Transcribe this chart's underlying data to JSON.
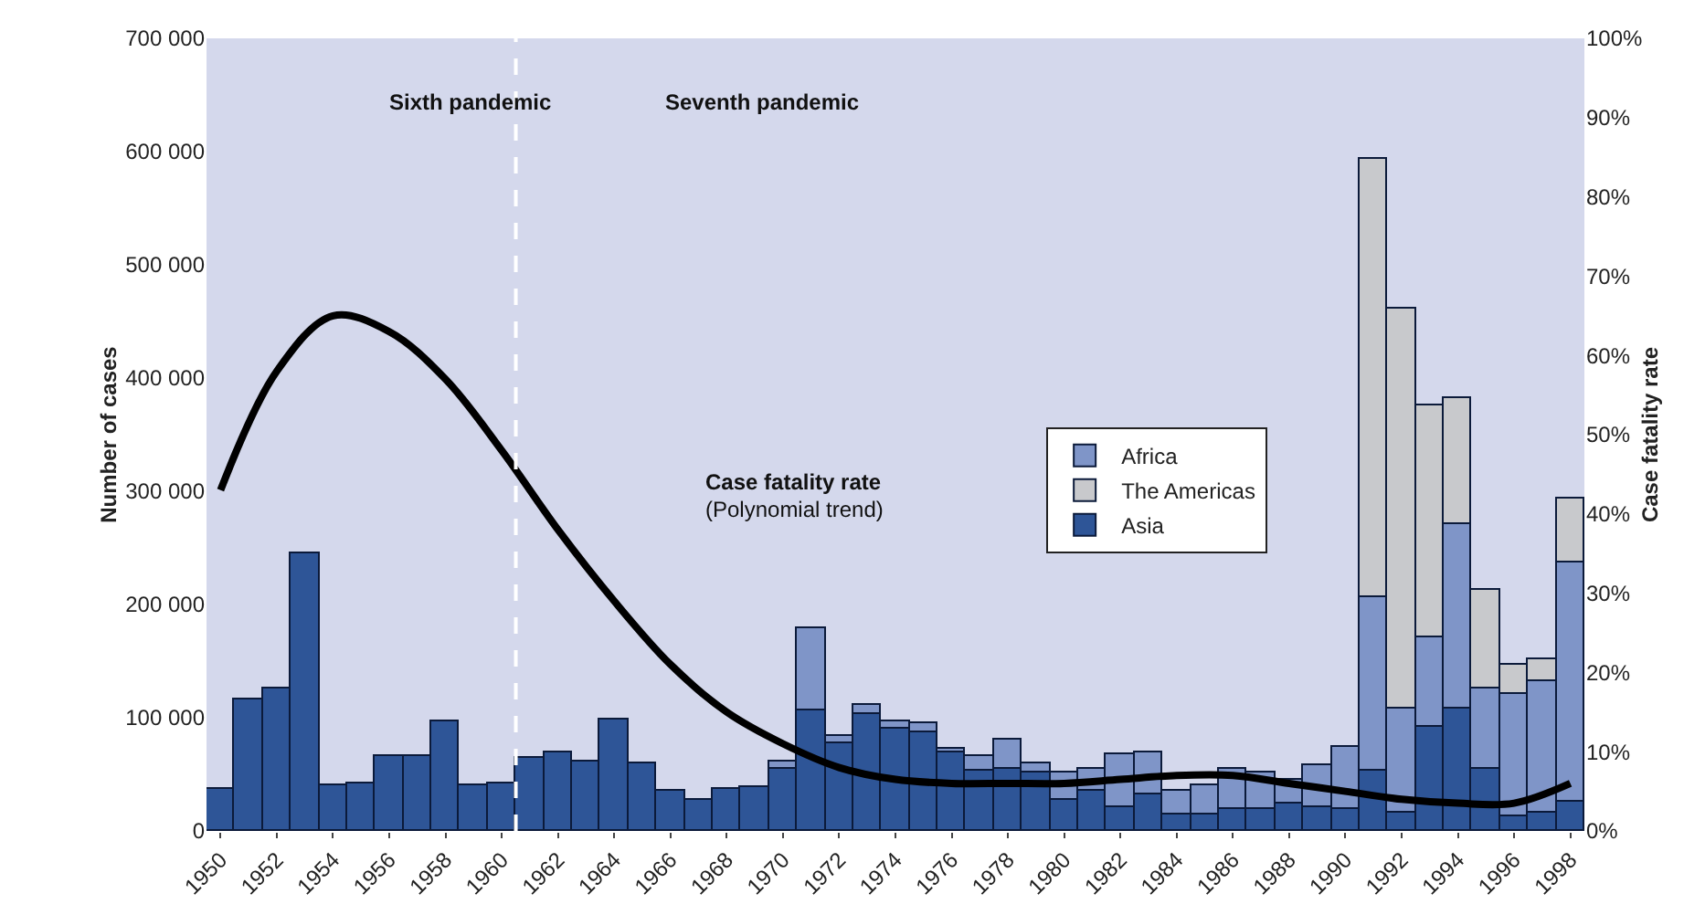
{
  "chart_data": {
    "type": "bar",
    "stacked": true,
    "ylabel": "Number of cases",
    "y2label": "Case fatality rate",
    "x": [
      1950,
      1951,
      1952,
      1953,
      1954,
      1955,
      1956,
      1957,
      1958,
      1959,
      1960,
      1961,
      1962,
      1963,
      1964,
      1965,
      1966,
      1967,
      1968,
      1969,
      1970,
      1971,
      1972,
      1973,
      1974,
      1975,
      1976,
      1977,
      1978,
      1979,
      1980,
      1981,
      1982,
      1983,
      1984,
      1985,
      1986,
      1987,
      1988,
      1989,
      1990,
      1991,
      1992,
      1993,
      1994,
      1995,
      1996,
      1997,
      1998
    ],
    "series": [
      {
        "name": "Asia",
        "color": "#2e5597",
        "values": [
          37000,
          116000,
          126000,
          245000,
          40000,
          42000,
          66000,
          66000,
          97000,
          40000,
          42000,
          64000,
          70000,
          62000,
          98000,
          60000,
          35000,
          27000,
          37000,
          39000,
          55000,
          106000,
          77000,
          103000,
          90000,
          87000,
          70000,
          53000,
          55000,
          52000,
          27000,
          35000,
          21000,
          32000,
          15000,
          15000,
          19000,
          19000,
          25000,
          21000,
          20000,
          54000,
          16000,
          92000,
          108000,
          55000,
          13000,
          16000,
          26000
        ]
      },
      {
        "name": "Africa",
        "color": "#7f95c8",
        "values": [
          null,
          null,
          null,
          null,
          null,
          null,
          null,
          null,
          null,
          null,
          null,
          null,
          null,
          null,
          null,
          null,
          null,
          null,
          null,
          null,
          6000,
          73000,
          7000,
          8000,
          7000,
          8000,
          3000,
          13000,
          26000,
          8000,
          25000,
          20000,
          47000,
          37000,
          20000,
          25000,
          36000,
          33000,
          20000,
          37000,
          54000,
          152000,
          92000,
          79000,
          163000,
          71000,
          108000,
          116000,
          211000
        ]
      },
      {
        "name": "The Americas",
        "color": "#c8c9cc",
        "values": [
          null,
          null,
          null,
          null,
          null,
          null,
          null,
          null,
          null,
          null,
          null,
          null,
          null,
          null,
          null,
          null,
          null,
          null,
          null,
          null,
          null,
          null,
          null,
          null,
          null,
          null,
          null,
          null,
          null,
          null,
          null,
          null,
          null,
          null,
          null,
          null,
          null,
          null,
          null,
          null,
          null,
          388000,
          353000,
          205000,
          111000,
          87000,
          26000,
          20000,
          57000
        ]
      },
      {
        "type": "line",
        "axis": "y2",
        "color": "#000000",
        "line_style": "solid",
        "x": [
          1950,
          1952,
          1954,
          1956,
          1958,
          1960,
          1962,
          1964,
          1966,
          1968,
          1970,
          1972,
          1974,
          1976,
          1978,
          1980,
          1982,
          1984,
          1986,
          1988,
          1990,
          1992,
          1994,
          1996,
          1998
        ],
        "values": [
          43,
          58,
          65,
          63,
          57,
          48,
          38,
          29,
          21,
          15,
          11,
          8,
          6.5,
          6,
          6,
          6,
          6.5,
          7,
          7,
          6,
          5,
          4,
          3.5,
          3.5,
          6
        ]
      }
    ],
    "xlim": [
      1949.5,
      1998.5
    ],
    "xticks": [
      1950,
      1952,
      1954,
      1956,
      1958,
      1960,
      1962,
      1964,
      1966,
      1968,
      1970,
      1972,
      1974,
      1976,
      1978,
      1980,
      1982,
      1984,
      1986,
      1988,
      1990,
      1992,
      1994,
      1996,
      1998
    ],
    "ylim": [
      0,
      700000
    ],
    "yticks": [
      {
        "value": 0,
        "label": "0"
      },
      {
        "value": 100000,
        "label": "100 000"
      },
      {
        "value": 200000,
        "label": "200 000"
      },
      {
        "value": 300000,
        "label": "300 000"
      },
      {
        "value": 400000,
        "label": "400 000"
      },
      {
        "value": 500000,
        "label": "500 000"
      },
      {
        "value": 600000,
        "label": "600 000"
      },
      {
        "value": 700000,
        "label": "700 000"
      }
    ],
    "y2lim": [
      0,
      100
    ],
    "y2ticks": [
      {
        "value": 0,
        "label": "0%"
      },
      {
        "value": 10,
        "label": "10%"
      },
      {
        "value": 20,
        "label": "20%"
      },
      {
        "value": 30,
        "label": "30%"
      },
      {
        "value": 40,
        "label": "40%"
      },
      {
        "value": 50,
        "label": "50%"
      },
      {
        "value": 60,
        "label": "60%"
      },
      {
        "value": 70,
        "label": "70%"
      },
      {
        "value": 80,
        "label": "80%"
      },
      {
        "value": 90,
        "label": "90%"
      },
      {
        "value": 100,
        "label": "100%"
      }
    ],
    "ref_lines": [
      {
        "axis": "x",
        "value": 1960.5,
        "color": "#ffffff",
        "line_style": "dashed"
      }
    ],
    "annotations": [
      "Sixth pandemic",
      "Seventh pandemic",
      "Case fatality rate",
      "(Polynomial trend)"
    ],
    "legend": "right",
    "grid": false
  }
}
